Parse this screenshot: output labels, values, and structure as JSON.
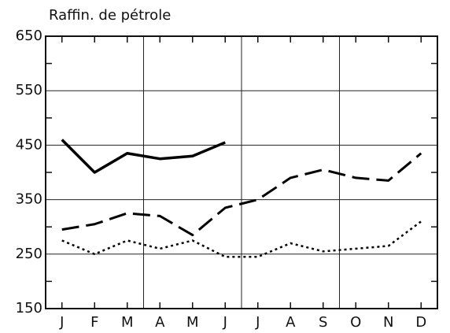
{
  "chart_data": {
    "type": "line",
    "title": "Raffin. de pétrole",
    "categories": [
      "J",
      "F",
      "M",
      "A",
      "M",
      "J",
      "J",
      "A",
      "S",
      "O",
      "N",
      "D"
    ],
    "series": [
      {
        "color": "#000000",
        "style": "solid",
        "values": [
          460,
          400,
          435,
          425,
          430,
          455,
          null,
          null,
          null,
          null,
          null,
          null
        ]
      },
      {
        "color": "#000000",
        "style": "dashed",
        "values": [
          295,
          305,
          325,
          320,
          285,
          335,
          350,
          390,
          405,
          390,
          385,
          435
        ]
      },
      {
        "color": "#000000",
        "style": "dotted",
        "values": [
          275,
          250,
          275,
          260,
          275,
          245,
          245,
          270,
          255,
          260,
          265,
          310
        ]
      }
    ],
    "ylim": [
      150,
      650
    ],
    "yticks": [
      150,
      250,
      350,
      450,
      550,
      650
    ],
    "yminorticks": [
      200,
      300,
      400,
      500,
      600
    ],
    "grid": true
  }
}
